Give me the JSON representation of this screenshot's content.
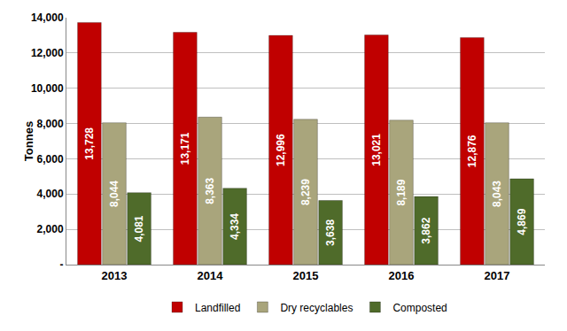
{
  "chart_data": {
    "type": "bar",
    "y_label": "Tonnes",
    "categories": [
      "2013",
      "2014",
      "2015",
      "2016",
      "2017"
    ],
    "series": [
      {
        "name": "Landfilled",
        "color": "#c00000",
        "values": [
          13728,
          13171,
          12996,
          13021,
          12876
        ],
        "value_labels": [
          "13,728",
          "13,171",
          "12,996",
          "13,021",
          "12,876"
        ]
      },
      {
        "name": "Dry recyclables",
        "color": "#a9a57c",
        "values": [
          8044,
          8363,
          8239,
          8189,
          8043
        ],
        "value_labels": [
          "8,044",
          "8,363",
          "8,239",
          "8,189",
          "8,043"
        ]
      },
      {
        "name": "Composted",
        "color": "#4f6b2a",
        "values": [
          4081,
          4334,
          3638,
          3862,
          4869
        ],
        "value_labels": [
          "4,081",
          "4,334",
          "3,638",
          "3,862",
          "4,869"
        ]
      }
    ],
    "ylim": [
      0,
      14000
    ],
    "yticks": [
      {
        "value": 0,
        "label": "-"
      },
      {
        "value": 2000,
        "label": "2,000"
      },
      {
        "value": 4000,
        "label": "4,000"
      },
      {
        "value": 6000,
        "label": "6,000"
      },
      {
        "value": 8000,
        "label": "8,000"
      },
      {
        "value": 10000,
        "label": "10,000"
      },
      {
        "value": 12000,
        "label": "12,000"
      },
      {
        "value": 14000,
        "label": "14,000"
      }
    ],
    "grid": true,
    "legend": "bottom",
    "data_labels": true
  }
}
